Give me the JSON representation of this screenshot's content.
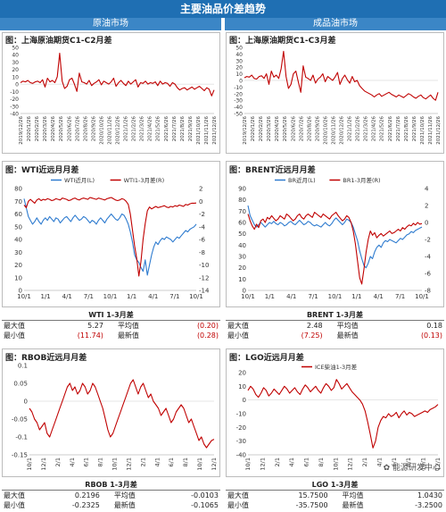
{
  "header": {
    "title": "主要油品价差趋势",
    "left_section": "原油市场",
    "right_section": "成品油市场"
  },
  "watermark": "能源研发中心",
  "stats": [
    {
      "title": "WTI 1-3月差",
      "labels": [
        "最大值",
        "平均值",
        "最小值",
        "最新值"
      ],
      "max": "5.27",
      "avg": "(0.20)",
      "min": "(11.74)",
      "latest": "(0.28)",
      "avg_neg": true,
      "min_neg": true,
      "latest_neg": true
    },
    {
      "title": "BRENT 1-3月差",
      "labels": [
        "最大值",
        "平均值",
        "最小值",
        "最新值"
      ],
      "max": "2.48",
      "avg": "0.18",
      "min": "(7.25)",
      "latest": "(0.13)",
      "avg_neg": false,
      "min_neg": true,
      "latest_neg": true
    },
    {
      "title": "RBOB 1-3月差",
      "labels": [
        "最大值",
        "平均值",
        "最小值",
        "最新值"
      ],
      "max": "0.2196",
      "avg": "-0.0103",
      "min": "-0.2325",
      "latest": "-0.1065",
      "avg_neg": false,
      "min_neg": false,
      "latest_neg": false
    },
    {
      "title": "LGO 1-3月差",
      "labels": [
        "最大值",
        "平均值",
        "最小值",
        "最新值"
      ],
      "max": "15.7500",
      "avg": "1.0430",
      "min": "-35.7500",
      "latest": "-3.2500",
      "avg_neg": false,
      "min_neg": false,
      "latest_neg": false
    }
  ],
  "chart_data": [
    {
      "id": "sc",
      "type": "line",
      "title": "图：上海原油期货C1-C2月差",
      "ylim": [
        -40,
        50
      ],
      "yticks": [
        50,
        40,
        30,
        20,
        10,
        0,
        -10,
        -20,
        -30,
        -40
      ],
      "xticks": [
        "2019/12/26",
        "2020/1/26",
        "2020/2/26",
        "2020/3/26",
        "2020/4/26",
        "2020/5/26",
        "2020/6/26",
        "2020/7/26",
        "2020/8/26",
        "2020/9/26",
        "2020/10/26",
        "2020/11/26",
        "2020/12/26",
        "2021/1/26",
        "2021/2/26",
        "2021/3/26",
        "2021/4/26",
        "2021/5/26",
        "2021/6/26",
        "2021/7/26",
        "2021/8/26",
        "2021/9/26",
        "2021/10/26",
        "2021/11/26",
        "2021/12/26"
      ],
      "series": [
        {
          "color": "#c00000",
          "values": [
            2,
            4,
            3,
            5,
            2,
            1,
            3,
            4,
            2,
            6,
            -4,
            8,
            3,
            5,
            2,
            10,
            42,
            4,
            -6,
            -3,
            6,
            8,
            0,
            -10,
            15,
            3,
            2,
            0,
            5,
            -2,
            1,
            3,
            6,
            -1,
            4,
            2,
            0,
            3,
            8,
            -3,
            2,
            5,
            1,
            -2,
            4,
            0,
            3,
            6,
            -4,
            2,
            1,
            4,
            0,
            2,
            1,
            3,
            -2,
            4,
            0,
            2,
            1,
            -3,
            2,
            0,
            -5,
            -8,
            -6,
            -5,
            -8,
            -6,
            -4,
            -7,
            -5,
            -3,
            -6,
            -9,
            -5,
            -7,
            -16,
            -8
          ]
        }
      ]
    },
    {
      "id": "sc3",
      "type": "line",
      "title": "图：上海原油期货C1-C3月差",
      "ylim": [
        -50,
        50
      ],
      "yticks": [
        50,
        40,
        30,
        20,
        10,
        0,
        -10,
        -20,
        -30,
        -40,
        -50
      ],
      "xticks": [
        "2019/12/26",
        "2020/1/26",
        "2020/2/26",
        "2020/3/26",
        "2020/4/26",
        "2020/5/26",
        "2020/6/26",
        "2020/7/26",
        "2020/8/26",
        "2020/9/26",
        "2020/10/26",
        "2020/11/26",
        "2020/12/26",
        "2021/1/26",
        "2021/2/26",
        "2021/3/26",
        "2021/4/26",
        "2021/5/26",
        "2021/6/26",
        "2021/7/26",
        "2021/8/26",
        "2021/9/26",
        "2021/10/26",
        "2021/11/26",
        "2021/12/26"
      ],
      "series": [
        {
          "color": "#c00000",
          "values": [
            4,
            6,
            5,
            8,
            3,
            2,
            6,
            7,
            3,
            10,
            -6,
            14,
            5,
            8,
            3,
            18,
            44,
            6,
            -12,
            -6,
            10,
            14,
            -2,
            -18,
            22,
            5,
            3,
            0,
            8,
            -4,
            2,
            5,
            10,
            -2,
            6,
            3,
            0,
            5,
            12,
            -6,
            3,
            8,
            1,
            -4,
            6,
            -2,
            0,
            -8,
            -12,
            -16,
            -18,
            -20,
            -22,
            -25,
            -22,
            -20,
            -24,
            -22,
            -20,
            -18,
            -21,
            -23,
            -25,
            -22,
            -24,
            -26,
            -23,
            -20,
            -22,
            -25,
            -27,
            -24,
            -22,
            -26,
            -28,
            -25,
            -22,
            -27,
            -30,
            -18
          ]
        }
      ]
    },
    {
      "id": "wti",
      "type": "line",
      "title": "图：WTI近远月月差",
      "legend": [
        "WTI近月(L)",
        "WTI1-3月差(R)"
      ],
      "ylim": [
        0,
        80
      ],
      "yticks": [
        80,
        70,
        60,
        50,
        40,
        30,
        20,
        10,
        0
      ],
      "y2lim": [
        -14,
        2
      ],
      "y2ticks": [
        2,
        0,
        -2,
        -4,
        -6,
        -8,
        -10,
        -12,
        -14
      ],
      "xticks": [
        "10/1",
        "1/1",
        "4/1",
        "7/1",
        "10/1",
        "1/1",
        "4/1",
        "7/1",
        "10/1"
      ],
      "series": [
        {
          "name": "WTI近月(L)",
          "axis": "left",
          "color": "#2e7bcf",
          "values": [
            72,
            65,
            58,
            55,
            52,
            54,
            57,
            54,
            52,
            55,
            57,
            55,
            58,
            56,
            54,
            57,
            56,
            53,
            55,
            57,
            58,
            56,
            54,
            57,
            59,
            57,
            55,
            56,
            58,
            57,
            55,
            53,
            55,
            54,
            52,
            55,
            57,
            55,
            53,
            56,
            58,
            60,
            58,
            56,
            55,
            57,
            60,
            59,
            56,
            52,
            46,
            38,
            28,
            24,
            22,
            18,
            15,
            24,
            12,
            20,
            28,
            34,
            38,
            36,
            39,
            41,
            40,
            42,
            41,
            40,
            38,
            40,
            42,
            41,
            43,
            45,
            47,
            46,
            48,
            49,
            50,
            52
          ]
        },
        {
          "name": "WTI1-3月差(R)",
          "axis": "right",
          "color": "#c00000",
          "values": [
            -0.6,
            -1.0,
            0.0,
            0.3,
            0.0,
            -0.3,
            0.2,
            0.4,
            0.1,
            0.3,
            0.2,
            0.4,
            0.3,
            0.1,
            0.2,
            0.4,
            0.3,
            0.2,
            0.5,
            0.4,
            0.3,
            0.1,
            0.2,
            0.4,
            0.5,
            0.3,
            0.2,
            0.4,
            0.5,
            0.4,
            0.3,
            0.6,
            0.5,
            0.4,
            0.3,
            0.5,
            0.4,
            0.3,
            0.2,
            0.4,
            0.5,
            0.6,
            0.4,
            0.2,
            0.1,
            0.2,
            0.4,
            0.3,
            0.0,
            -0.5,
            -2.0,
            -4.5,
            -7.0,
            -9.0,
            -11.74,
            -9.5,
            -6.0,
            -3.5,
            -1.5,
            -0.9,
            -1.2,
            -1.0,
            -0.8,
            -1.0,
            -0.9,
            -0.8,
            -0.7,
            -0.9,
            -1.0,
            -0.8,
            -0.9,
            -0.7,
            -0.8,
            -0.6,
            -0.7,
            -0.8,
            -0.5,
            -0.6,
            -0.4,
            -0.3,
            -0.3,
            -0.28
          ]
        }
      ]
    },
    {
      "id": "brent",
      "type": "line",
      "title": "图：BRENT近远月月差",
      "legend": [
        "BR近月(L)",
        "BR1-3月差(R)"
      ],
      "ylim": [
        0,
        90
      ],
      "yticks": [
        90,
        80,
        70,
        60,
        50,
        40,
        30,
        20,
        10,
        0
      ],
      "y2lim": [
        -8,
        4
      ],
      "y2ticks": [
        4,
        2,
        0,
        -2,
        -4,
        -6,
        -8
      ],
      "xticks": [
        "10/1",
        "1/1",
        "4/1",
        "7/1",
        "10/1",
        "1/1",
        "4/1",
        "7/1",
        "10/1"
      ],
      "series": [
        {
          "name": "BR近月(L)",
          "axis": "left",
          "color": "#2e7bcf",
          "values": [
            75,
            66,
            62,
            58,
            56,
            58,
            60,
            58,
            56,
            58,
            60,
            59,
            61,
            59,
            58,
            60,
            59,
            57,
            58,
            60,
            61,
            59,
            58,
            60,
            62,
            60,
            58,
            59,
            61,
            60,
            58,
            57,
            58,
            57,
            56,
            58,
            60,
            58,
            57,
            59,
            62,
            64,
            62,
            60,
            58,
            60,
            63,
            62,
            60,
            56,
            50,
            44,
            35,
            28,
            22,
            20,
            24,
            30,
            28,
            34,
            38,
            40,
            38,
            42,
            44,
            43,
            45,
            44,
            43,
            42,
            44,
            46,
            45,
            47,
            49,
            50,
            52,
            51,
            53,
            54,
            55,
            56
          ]
        },
        {
          "name": "BR1-3月差(R)",
          "axis": "right",
          "color": "#c00000",
          "values": [
            1.0,
            0.2,
            -0.4,
            -0.8,
            -0.2,
            -0.6,
            0.2,
            0.4,
            0.0,
            0.6,
            0.4,
            0.8,
            0.5,
            0.2,
            0.4,
            0.8,
            0.6,
            0.4,
            1.0,
            0.8,
            0.5,
            0.2,
            0.4,
            0.8,
            1.0,
            0.6,
            0.4,
            0.8,
            1.0,
            0.8,
            0.6,
            1.2,
            1.0,
            0.8,
            0.6,
            1.0,
            0.8,
            0.6,
            0.4,
            0.8,
            1.0,
            1.2,
            0.8,
            0.5,
            0.2,
            0.4,
            0.8,
            0.6,
            0.0,
            -1.0,
            -2.5,
            -4.5,
            -6.5,
            -7.25,
            -5.5,
            -3.5,
            -2.0,
            -1.0,
            -1.5,
            -1.2,
            -1.8,
            -1.5,
            -1.3,
            -1.6,
            -1.4,
            -1.2,
            -1.0,
            -1.3,
            -1.2,
            -1.0,
            -0.8,
            -1.0,
            -0.6,
            -0.8,
            -0.5,
            -0.3,
            -0.4,
            -0.1,
            -0.3,
            0.0,
            -0.2,
            -0.13
          ]
        }
      ]
    },
    {
      "id": "rbob",
      "type": "line",
      "title": "图：RBOB近远月月差",
      "ylim": [
        -0.15,
        0.1
      ],
      "yticks": [
        0.1,
        0.05,
        0,
        -0.05,
        -0.1,
        -0.15
      ],
      "ytick_labels": [
        "0.1",
        "0.05",
        "0",
        "-0.05",
        "-0.1",
        "-0.15"
      ],
      "xticks": [
        "10/1",
        "12/1",
        "2/1",
        "4/1",
        "6/1",
        "8/1",
        "10/1",
        "12/1",
        "2/1",
        "4/1",
        "6/1",
        "8/1",
        "10/1",
        "12/1"
      ],
      "series": [
        {
          "name": "RBOB 1-3月差",
          "color": "#c00000",
          "values": [
            -0.02,
            -0.03,
            -0.05,
            -0.06,
            -0.08,
            -0.07,
            -0.06,
            -0.09,
            -0.1,
            -0.08,
            -0.06,
            -0.04,
            -0.02,
            0.0,
            0.02,
            0.04,
            0.05,
            0.03,
            0.04,
            0.02,
            0.03,
            0.05,
            0.04,
            0.02,
            0.03,
            0.05,
            0.04,
            0.02,
            0.0,
            -0.02,
            -0.05,
            -0.08,
            -0.1,
            -0.09,
            -0.07,
            -0.05,
            -0.03,
            -0.01,
            0.01,
            0.03,
            0.05,
            0.06,
            0.04,
            0.02,
            0.04,
            0.05,
            0.03,
            0.01,
            0.02,
            0.0,
            -0.01,
            -0.02,
            -0.04,
            -0.03,
            -0.02,
            -0.04,
            -0.06,
            -0.05,
            -0.03,
            -0.02,
            -0.01,
            -0.02,
            -0.04,
            -0.06,
            -0.05,
            -0.07,
            -0.09,
            -0.11,
            -0.1,
            -0.12,
            -0.13,
            -0.12,
            -0.11,
            -0.1065
          ]
        }
      ]
    },
    {
      "id": "lgo",
      "type": "line",
      "title": "图：LGO近远月月差",
      "legend": [
        "ICE柴油1-3月差"
      ],
      "ylim": [
        -40,
        20
      ],
      "yticks": [
        20,
        10,
        0,
        -10,
        -20,
        -30,
        -40
      ],
      "xticks": [
        "10/1",
        "12/1",
        "2/1",
        "4/1",
        "6/1",
        "8/1",
        "10/1",
        "12/1",
        "2/1",
        "4/1",
        "6/1",
        "8/1",
        "10/1",
        "12/1"
      ],
      "series": [
        {
          "name": "ICE柴油1-3月差",
          "color": "#c00000",
          "values": [
            7,
            10,
            8,
            4,
            2,
            5,
            9,
            7,
            3,
            5,
            8,
            6,
            4,
            7,
            10,
            8,
            5,
            7,
            9,
            6,
            4,
            8,
            11,
            9,
            6,
            8,
            10,
            7,
            5,
            9,
            12,
            10,
            7,
            9,
            15,
            12,
            8,
            10,
            12,
            9,
            6,
            4,
            2,
            0,
            -3,
            -8,
            -16,
            -25,
            -35,
            -30,
            -20,
            -15,
            -12,
            -13,
            -10,
            -12,
            -11,
            -9,
            -13,
            -10,
            -8,
            -11,
            -9,
            -10,
            -12,
            -11,
            -10,
            -9,
            -8,
            -9,
            -7,
            -6,
            -5,
            -3.25
          ]
        }
      ]
    }
  ]
}
